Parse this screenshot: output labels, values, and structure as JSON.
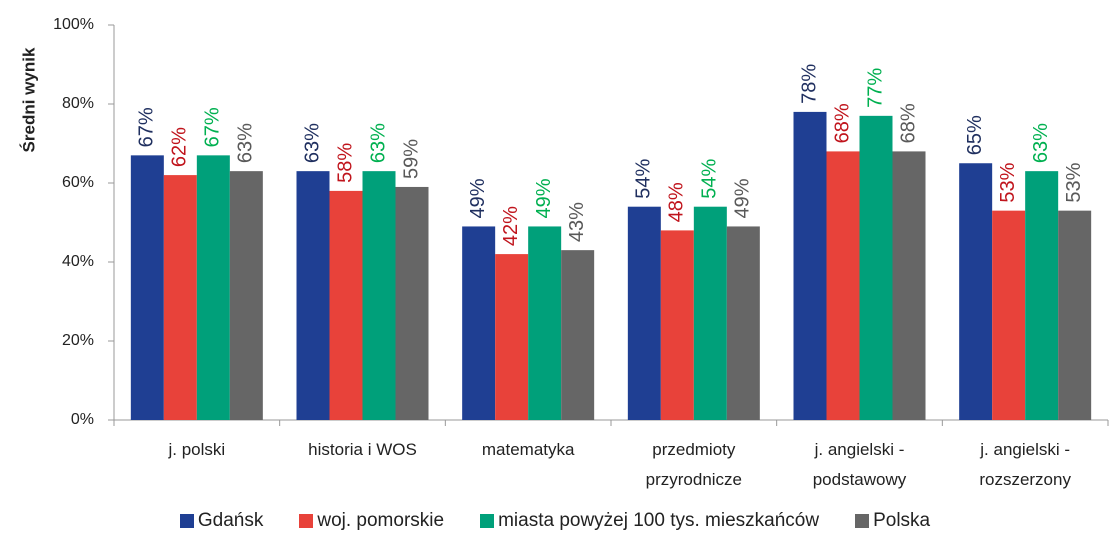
{
  "chart_data": {
    "type": "bar",
    "y_label": "Średni wynik",
    "categories": [
      "j. polski",
      "historia i WOS",
      "matematyka",
      "przedmioty przyrodnicze",
      "j. angielski - podstawowy",
      "j. angielski - rozszerzony"
    ],
    "series": [
      {
        "name": "Gdańsk",
        "color": "#1f3f93",
        "label_color": "#1f2f5f",
        "values": [
          67,
          63,
          49,
          54,
          78,
          65
        ],
        "value_labels": [
          "67%",
          "63%",
          "49%",
          "54%",
          "78%",
          "65%"
        ]
      },
      {
        "name": "woj. pomorskie",
        "color": "#e8423a",
        "label_color": "#c0141c",
        "values": [
          62,
          58,
          42,
          48,
          68,
          53
        ],
        "value_labels": [
          "62%",
          "58%",
          "42%",
          "48%",
          "68%",
          "53%"
        ]
      },
      {
        "name": "miasta powyżej 100 tys. mieszkańców",
        "color": "#00a07a",
        "label_color": "#00b050",
        "values": [
          67,
          63,
          49,
          54,
          77,
          63
        ],
        "value_labels": [
          "67%",
          "63%",
          "49%",
          "54%",
          "77%",
          "63%"
        ]
      },
      {
        "name": "Polska",
        "color": "#666666",
        "label_color": "#595959",
        "values": [
          63,
          59,
          43,
          49,
          68,
          53
        ],
        "value_labels": [
          "63%",
          "59%",
          "43%",
          "49%",
          "68%",
          "53%"
        ]
      }
    ],
    "ylim": [
      0,
      100
    ],
    "yticks": [
      {
        "value": 0,
        "label": "0%"
      },
      {
        "value": 20,
        "label": "20%"
      },
      {
        "value": 40,
        "label": "40%"
      },
      {
        "value": 60,
        "label": "60%"
      },
      {
        "value": 80,
        "label": "80%"
      },
      {
        "value": 100,
        "label": "100%"
      }
    ],
    "grid": false,
    "legend": "bottom"
  }
}
